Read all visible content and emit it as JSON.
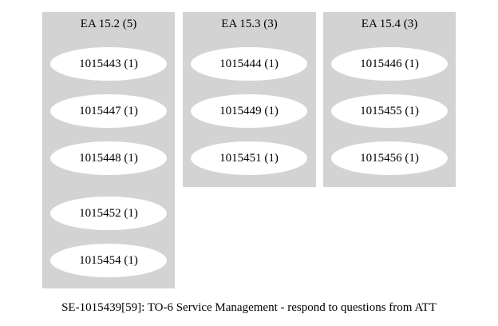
{
  "clusters": [
    {
      "title": "EA 15.2 (5)",
      "nodes": [
        "1015443 (1)",
        "1015447 (1)",
        "1015448 (1)",
        "1015452 (1)",
        "1015454 (1)"
      ]
    },
    {
      "title": "EA 15.3 (3)",
      "nodes": [
        "1015444 (1)",
        "1015449 (1)",
        "1015451 (1)"
      ]
    },
    {
      "title": "EA 15.4 (3)",
      "nodes": [
        "1015446 (1)",
        "1015455 (1)",
        "1015456 (1)"
      ]
    }
  ],
  "caption": "SE-1015439[59]: TO-6  Service Management - respond to questions from ATT",
  "colors": {
    "cluster_fill": "#d3d3d3",
    "node_fill": "#ffffff",
    "text": "#000000"
  }
}
